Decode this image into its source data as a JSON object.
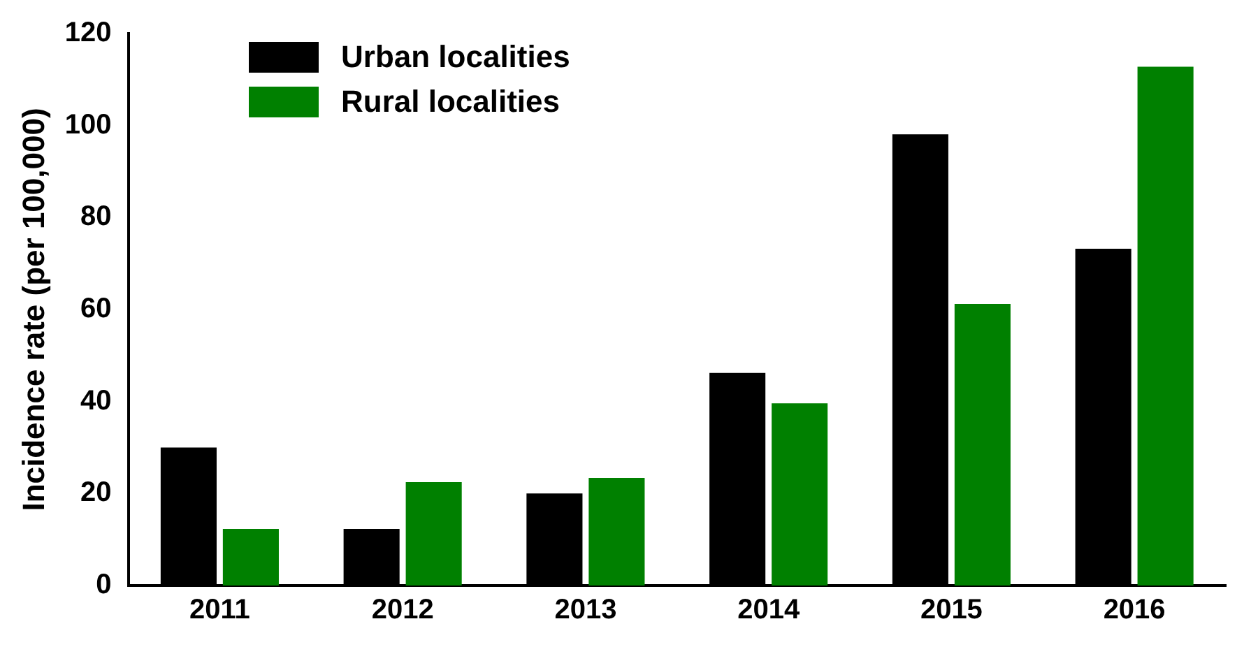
{
  "chart_data": {
    "type": "bar",
    "ylabel": "Incidence rate (per 100,000)",
    "categories": [
      "2011",
      "2012",
      "2013",
      "2014",
      "2015",
      "2016"
    ],
    "series": [
      {
        "name": "Urban localities",
        "color": "#000000",
        "values": [
          30,
          12.3,
          20,
          46.2,
          98.1,
          73.2
        ]
      },
      {
        "name": "Rural localities",
        "color": "#008000",
        "values": [
          12.3,
          22.5,
          23.4,
          39.6,
          61.2,
          112.8
        ]
      }
    ],
    "ylim": [
      0,
      120
    ],
    "yticks": [
      0,
      20,
      40,
      60,
      80,
      100,
      120
    ],
    "grid": false,
    "legend": "top left"
  }
}
